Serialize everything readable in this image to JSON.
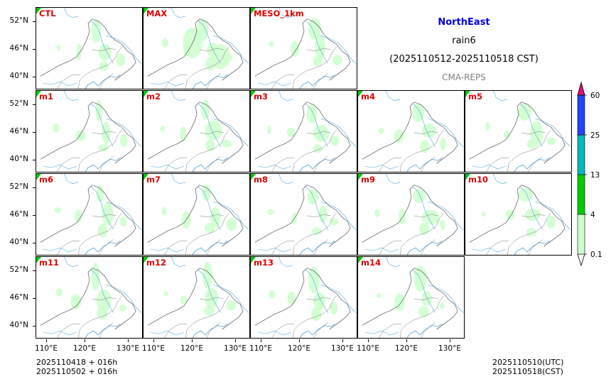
{
  "header": {
    "region": "NorthEast",
    "variable": "rain6",
    "period": "(2025110512-2025110518 CST)",
    "system": "CMA-REPS",
    "region_color": "#0000dd",
    "system_color": "#808080"
  },
  "panels": [
    "CTL",
    "MAX",
    "MESO_1km",
    "m1",
    "m2",
    "m3",
    "m4",
    "m5",
    "m6",
    "m7",
    "m8",
    "m9",
    "m10",
    "m11",
    "m12",
    "m13",
    "m14"
  ],
  "axes": {
    "lat_labels": [
      "52°N",
      "46°N",
      "40°N"
    ],
    "lon_labels": [
      "110°E",
      "120°E",
      "130°E"
    ]
  },
  "colorbar": {
    "levels": [
      "0.1",
      "4",
      "13",
      "25",
      "60"
    ],
    "colors": [
      "#ccffcc",
      "#00cc00",
      "#00bbbb",
      "#2244ff",
      "#dd1177"
    ]
  },
  "footer": {
    "left_line1": "2025110418  +  016h",
    "left_line2": "2025110502  +  016h",
    "right_line1": "2025110510(UTC)",
    "right_line2": "2025110518(CST)"
  }
}
